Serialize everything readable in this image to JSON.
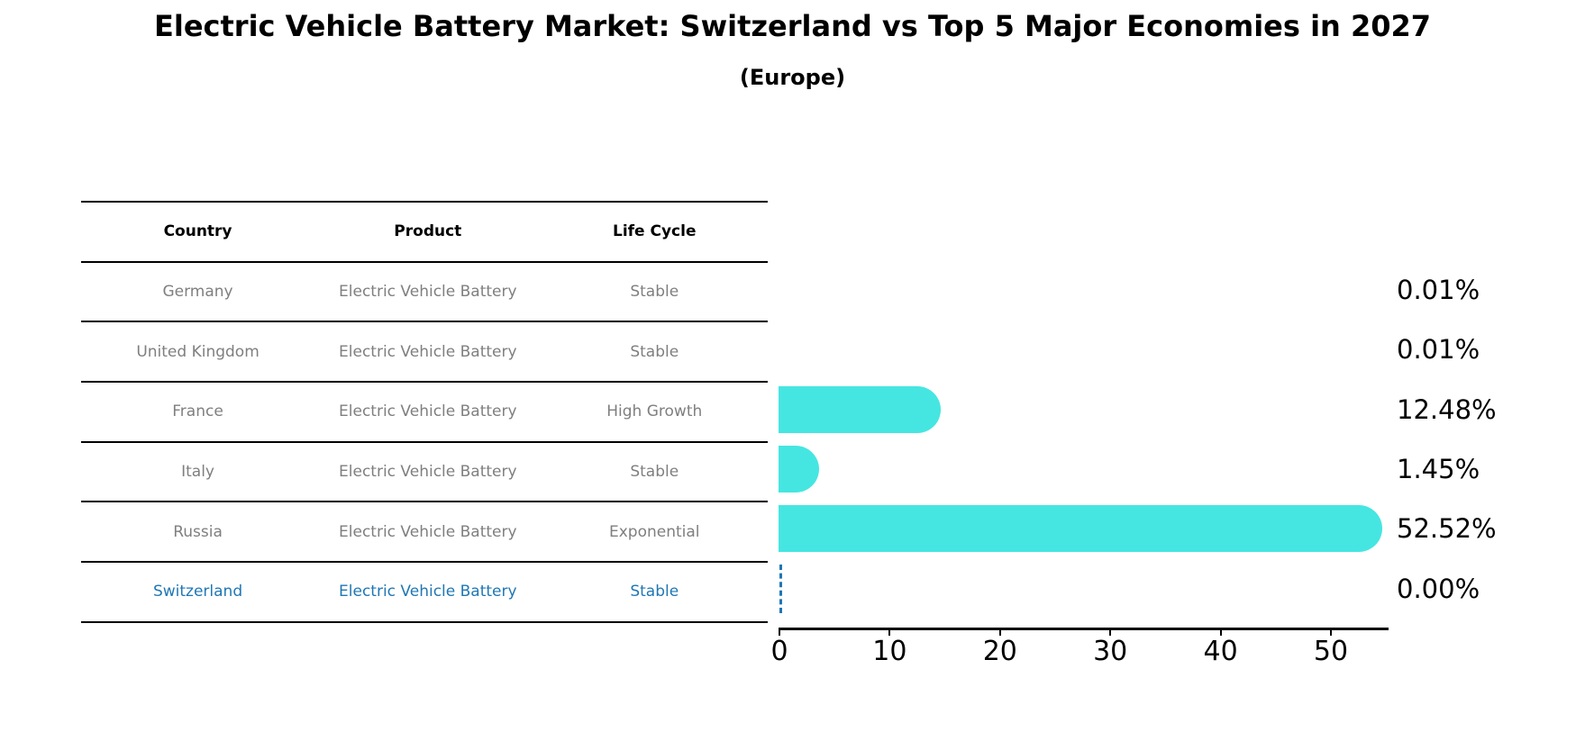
{
  "header": {
    "title": "Electric Vehicle Battery Market: Switzerland vs Top 5 Major Economies in 2027",
    "subtitle": "(Europe)"
  },
  "table": {
    "columns": [
      "Country",
      "Product",
      "Life Cycle"
    ],
    "rows": [
      {
        "country": "Germany",
        "product": "Electric Vehicle Battery",
        "life_cycle": "Stable",
        "highlight": false
      },
      {
        "country": "United Kingdom",
        "product": "Electric Vehicle Battery",
        "life_cycle": "Stable",
        "highlight": false
      },
      {
        "country": "France",
        "product": "Electric Vehicle Battery",
        "life_cycle": "High Growth",
        "highlight": false
      },
      {
        "country": "Italy",
        "product": "Electric Vehicle Battery",
        "life_cycle": "Stable",
        "highlight": false
      },
      {
        "country": "Russia",
        "product": "Electric Vehicle Battery",
        "life_cycle": "Exponential",
        "highlight": false
      },
      {
        "country": "Switzerland",
        "product": "Electric Vehicle Battery",
        "life_cycle": "Stable",
        "highlight": true
      }
    ],
    "text_color": "#7f7f7f",
    "highlight_color": "#1f77b4"
  },
  "chart_data": {
    "type": "bar",
    "orientation": "horizontal",
    "title": "Electric Vehicle Battery Market: Switzerland vs Top 5 Major Economies in 2027",
    "subtitle": "(Europe)",
    "categories": [
      "Germany",
      "United Kingdom",
      "France",
      "Italy",
      "Russia",
      "Switzerland"
    ],
    "values": [
      0.01,
      0.01,
      12.48,
      1.45,
      52.52,
      0.0
    ],
    "value_labels": [
      "0.01%",
      "0.01%",
      "12.48%",
      "1.45%",
      "52.52%",
      "0.00%"
    ],
    "xlabel": "",
    "ylabel": "",
    "xlim": [
      0,
      55.2
    ],
    "xticks": [
      0,
      10,
      20,
      30,
      40,
      50
    ],
    "grid": false,
    "legend": null,
    "bar_color": "#45e6e1",
    "axis_color": "#000000",
    "reference_line": {
      "category": "Switzerland",
      "value": 0,
      "style": "dashed",
      "color": "#1f77b4"
    }
  }
}
